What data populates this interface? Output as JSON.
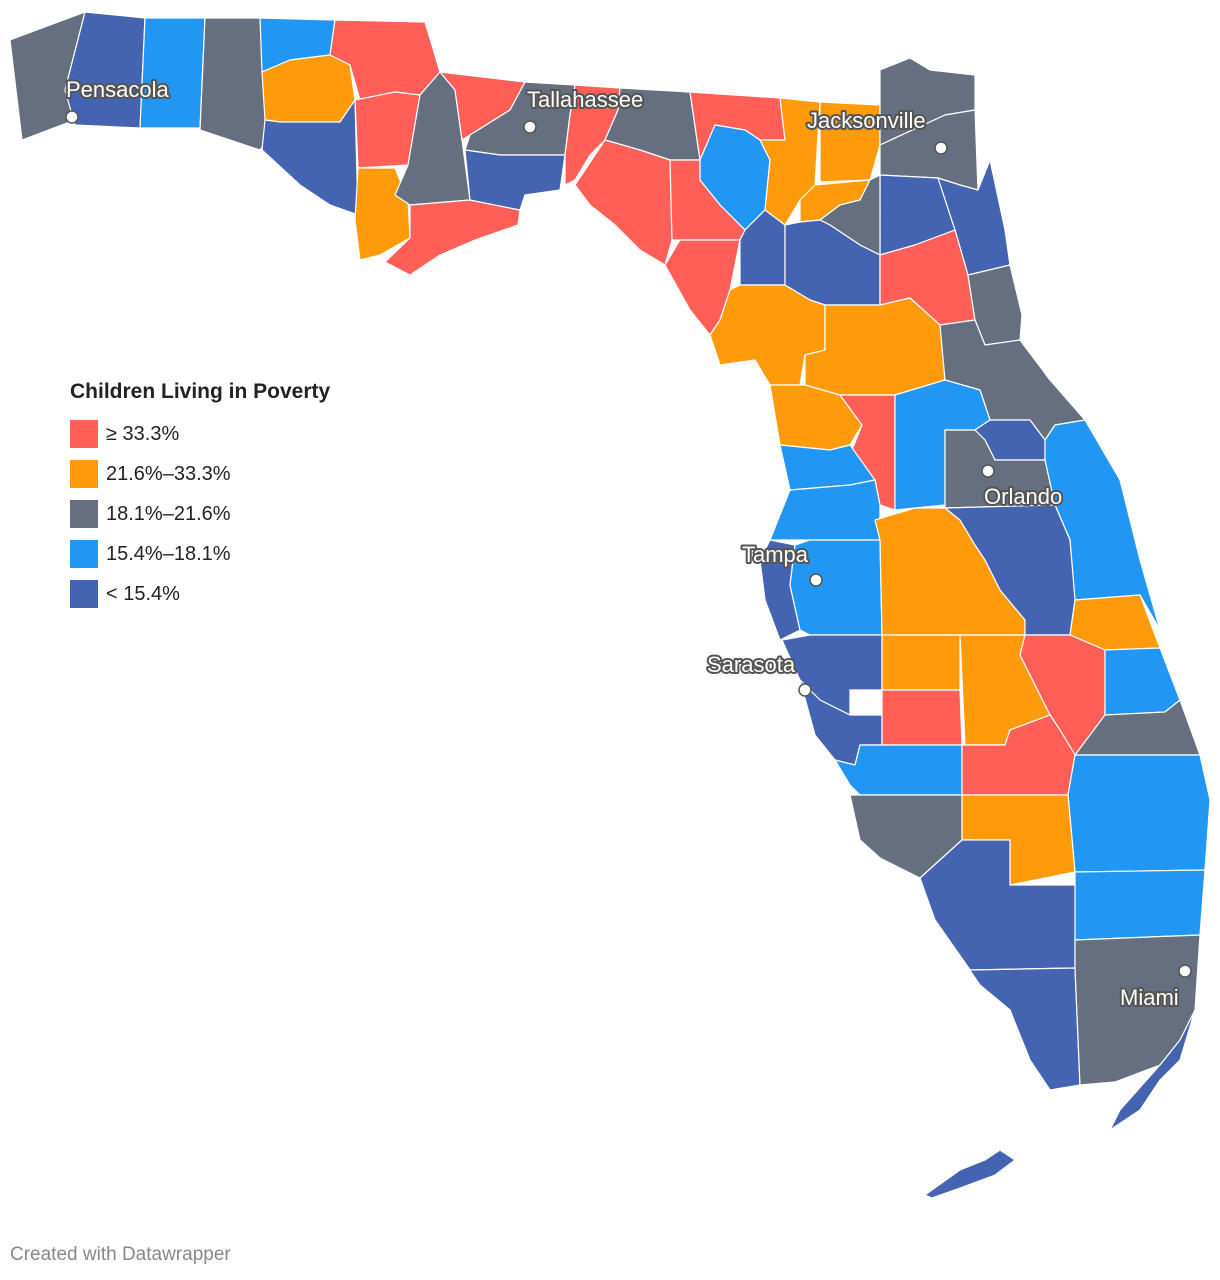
{
  "legend": {
    "title": "Children Living in Poverty",
    "items": [
      {
        "label": "≥ 33.3%",
        "color": "#ff5f57"
      },
      {
        "label": "21.6%–33.3%",
        "color": "#ff9a0a"
      },
      {
        "label": "18.1%–21.6%",
        "color": "#656f80"
      },
      {
        "label": "15.4%–18.1%",
        "color": "#2196f3"
      },
      {
        "label": "< 15.4%",
        "color": "#4463b0"
      }
    ]
  },
  "cities": {
    "pensacola": "Pensacola",
    "tallahassee": "Tallahassee",
    "jacksonville": "Jacksonville",
    "orlando": "Orlando",
    "tampa": "Tampa",
    "sarasota": "Sarasota",
    "miami": "Miami"
  },
  "credit": "Created with Datawrapper"
}
